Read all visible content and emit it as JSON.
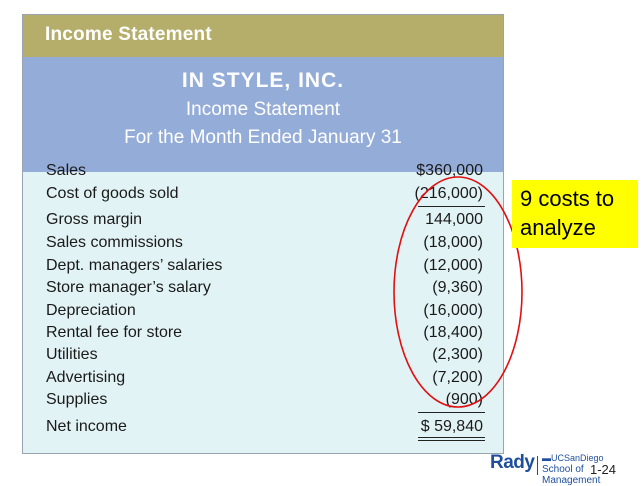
{
  "banner": "Income Statement",
  "header": {
    "company": "IN STYLE, INC.",
    "title": "Income Statement",
    "period": "For the Month Ended January 31"
  },
  "rows": [
    {
      "label": "Sales",
      "value": "$360,000"
    },
    {
      "label": "Cost of goods sold",
      "value": "(216,000)"
    },
    {
      "label": "Gross margin",
      "value": "144,000"
    },
    {
      "label": "Sales commissions",
      "value": "(18,000)"
    },
    {
      "label": "Dept. managers’ salaries",
      "value": "(12,000)"
    },
    {
      "label": "Store manager’s salary",
      "value": "(9,360)"
    },
    {
      "label": "Depreciation",
      "value": "(16,000)"
    },
    {
      "label": "Rental fee for store",
      "value": "(18,400)"
    },
    {
      "label": "Utilities",
      "value": "(2,300)"
    },
    {
      "label": "Advertising",
      "value": "(7,200)"
    },
    {
      "label": "Supplies",
      "value": "(900)"
    },
    {
      "label": "Net income",
      "value": "$ 59,840"
    }
  ],
  "callout": {
    "line1": "9 costs to",
    "line2": "analyze"
  },
  "logo": {
    "brand": "Rady",
    "university": "UCSanDiego",
    "school": "School of Management"
  },
  "page_number": "1-24",
  "colors": {
    "banner": "#b5ad6a",
    "header": "#94acd8",
    "body": "#e2f3f6",
    "highlight": "#ffff00",
    "ring": "#e01010",
    "brand": "#1f4f9c"
  }
}
